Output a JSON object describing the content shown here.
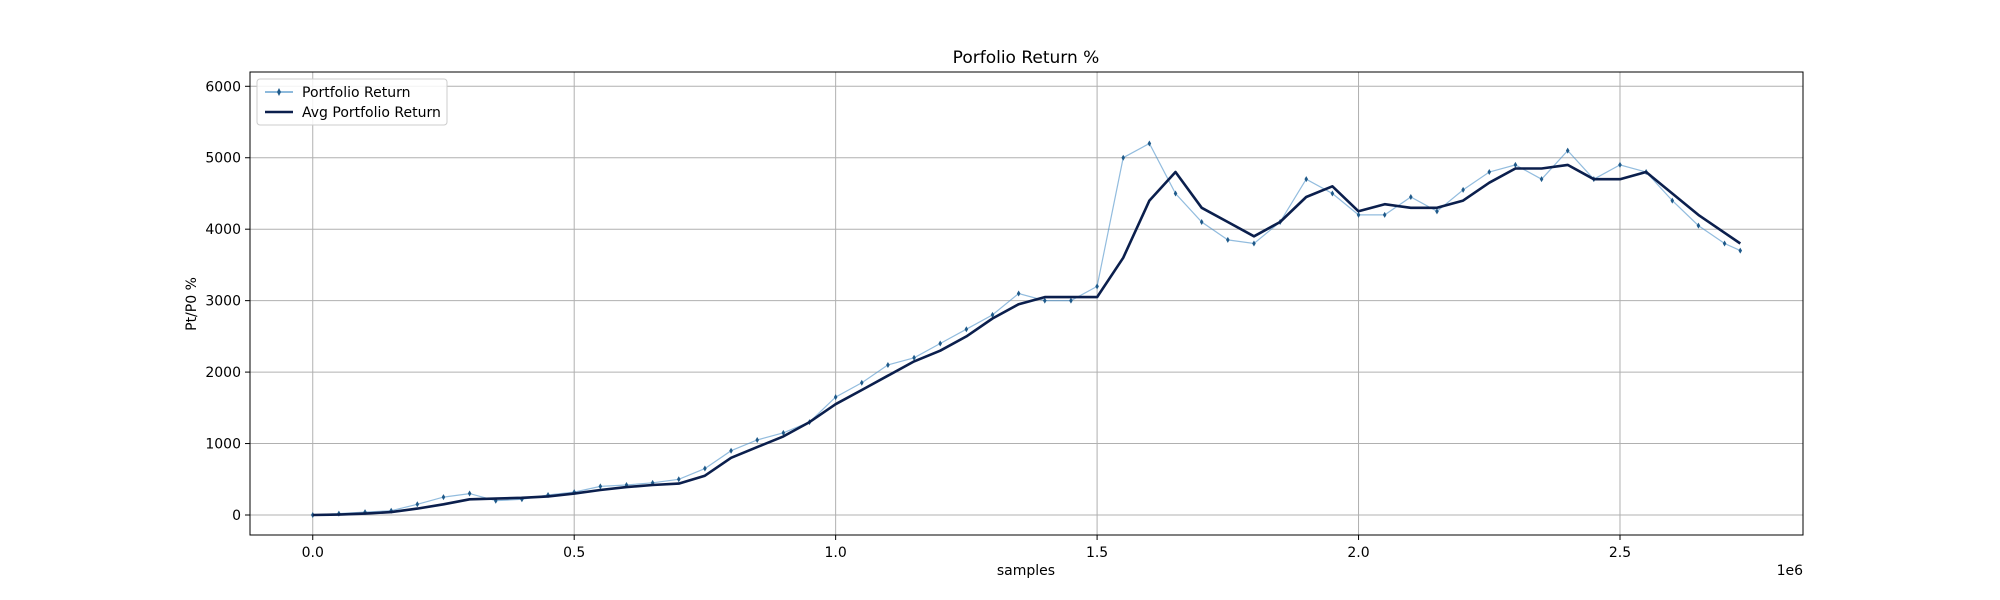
{
  "chart_data": {
    "type": "line",
    "title": "Porfolio Return %",
    "xlabel": "samples",
    "ylabel": "Pt/P0 %",
    "x_offset_label": "1e6",
    "xlim": [
      -0.12,
      2.85
    ],
    "ylim": [
      -280,
      6200
    ],
    "x_ticks": [
      0.0,
      0.5,
      1.0,
      1.5,
      2.0,
      2.5
    ],
    "x_tick_labels": [
      "0.0",
      "0.5",
      "1.0",
      "1.5",
      "2.0",
      "2.5"
    ],
    "y_ticks": [
      0,
      1000,
      2000,
      3000,
      4000,
      5000,
      6000
    ],
    "y_tick_labels": [
      "0",
      "1000",
      "2000",
      "3000",
      "4000",
      "5000",
      "6000"
    ],
    "grid": true,
    "legend_position": "top-left",
    "colors": {
      "portfolio": "#4a90c8",
      "portfolio_marker": "#1f5a8a",
      "average": "#0b1f4d",
      "grid": "#b0b0b0"
    },
    "series": [
      {
        "name": "Portfolio Return",
        "style": "thin-line-with-markers",
        "x": [
          0.0,
          0.05,
          0.1,
          0.15,
          0.2,
          0.25,
          0.3,
          0.35,
          0.4,
          0.45,
          0.5,
          0.55,
          0.6,
          0.65,
          0.7,
          0.75,
          0.8,
          0.85,
          0.9,
          0.95,
          1.0,
          1.05,
          1.1,
          1.15,
          1.2,
          1.25,
          1.3,
          1.35,
          1.4,
          1.45,
          1.5,
          1.55,
          1.6,
          1.65,
          1.7,
          1.75,
          1.8,
          1.85,
          1.9,
          1.95,
          2.0,
          2.05,
          2.1,
          2.15,
          2.2,
          2.25,
          2.3,
          2.35,
          2.4,
          2.45,
          2.5,
          2.55,
          2.6,
          2.65,
          2.7,
          2.73
        ],
        "values": [
          0,
          20,
          40,
          60,
          150,
          250,
          300,
          200,
          220,
          280,
          320,
          400,
          420,
          450,
          500,
          650,
          900,
          1050,
          1150,
          1300,
          1650,
          1850,
          2100,
          2200,
          2400,
          2600,
          2800,
          3100,
          3000,
          3000,
          3200,
          5000,
          5200,
          4500,
          4100,
          3850,
          3800,
          4100,
          4700,
          4500,
          4200,
          4200,
          4450,
          4250,
          4550,
          4800,
          4900,
          4700,
          5100,
          4700,
          4900,
          4800,
          4400,
          4050,
          3800,
          3700
        ]
      },
      {
        "name": "Avg Portfolio Return",
        "style": "thick-line",
        "x": [
          0.0,
          0.05,
          0.1,
          0.15,
          0.2,
          0.25,
          0.3,
          0.35,
          0.4,
          0.45,
          0.5,
          0.55,
          0.6,
          0.65,
          0.7,
          0.75,
          0.8,
          0.85,
          0.9,
          0.95,
          1.0,
          1.05,
          1.1,
          1.15,
          1.2,
          1.25,
          1.3,
          1.35,
          1.4,
          1.45,
          1.5,
          1.55,
          1.6,
          1.65,
          1.7,
          1.75,
          1.8,
          1.85,
          1.9,
          1.95,
          2.0,
          2.05,
          2.1,
          2.15,
          2.2,
          2.25,
          2.3,
          2.35,
          2.4,
          2.45,
          2.5,
          2.55,
          2.6,
          2.65,
          2.7,
          2.73
        ],
        "values": [
          0,
          5,
          20,
          40,
          90,
          150,
          220,
          230,
          240,
          260,
          300,
          350,
          390,
          420,
          440,
          550,
          800,
          950,
          1100,
          1300,
          1550,
          1750,
          1950,
          2150,
          2300,
          2500,
          2750,
          2950,
          3050,
          3050,
          3050,
          3600,
          4400,
          4800,
          4300,
          4100,
          3900,
          4100,
          4450,
          4600,
          4250,
          4350,
          4300,
          4300,
          4400,
          4650,
          4850,
          4850,
          4900,
          4700,
          4700,
          4800,
          4500,
          4200,
          3950,
          3800
        ]
      }
    ]
  }
}
